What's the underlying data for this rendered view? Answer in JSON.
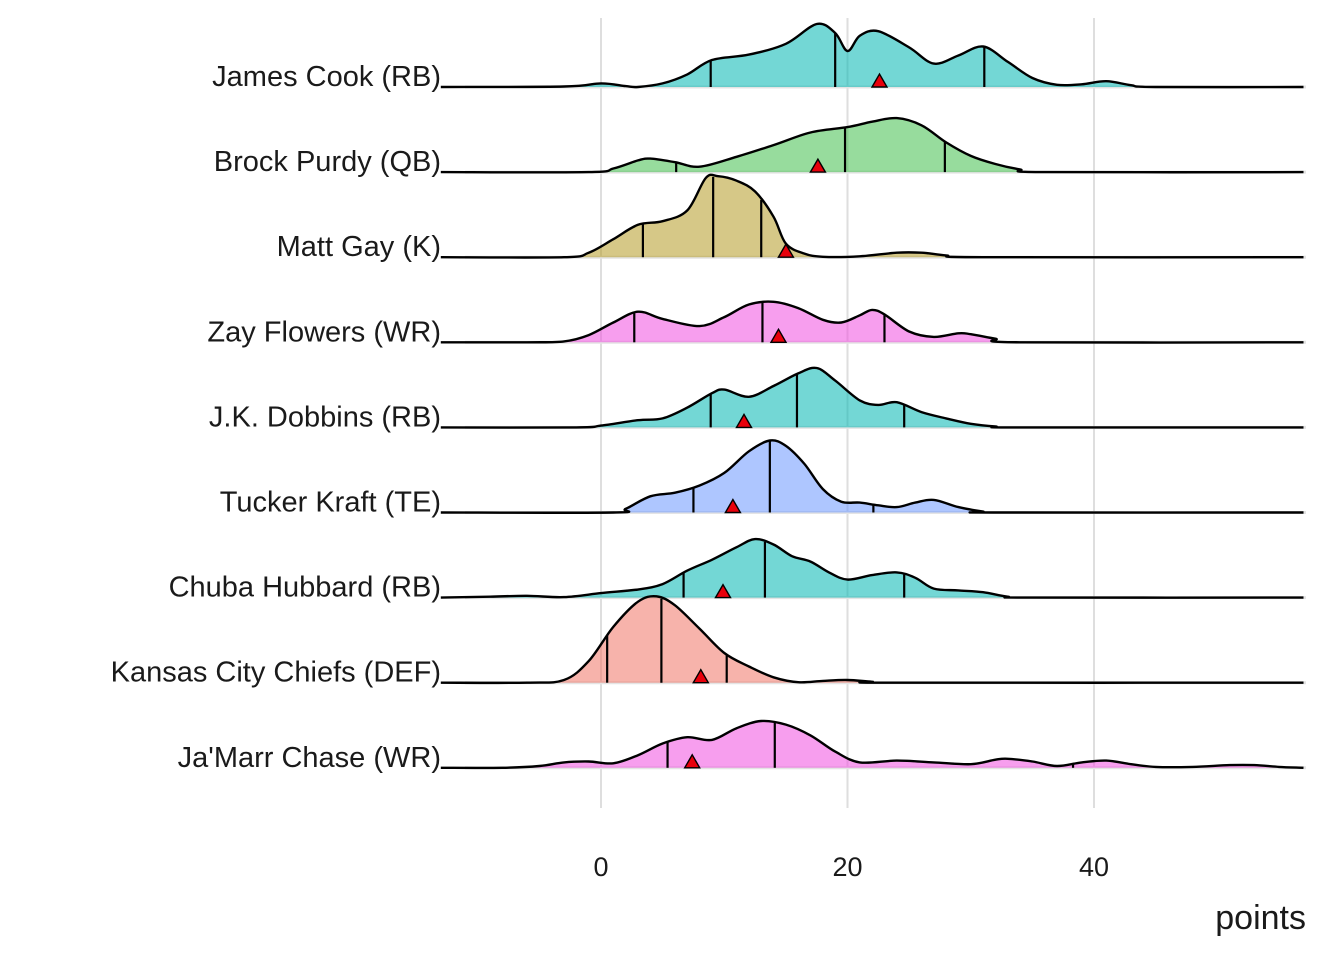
{
  "chart_data": {
    "type": "ridgeline",
    "title": "",
    "xlabel": "points",
    "ylabel": "",
    "xlim": [
      -13.5,
      57
    ],
    "x_ticks": [
      0,
      20,
      40
    ],
    "grid": "vertical",
    "marker_label": "red triangle",
    "series": [
      {
        "name": "James Cook (RB)",
        "color": "#00B6B2",
        "quantiles": [
          8.9,
          19.0,
          31.1
        ],
        "marker": 22.6,
        "range": [
          -13,
          57
        ],
        "density": [
          [
            -13,
            0
          ],
          [
            -3,
            0.005
          ],
          [
            0,
            0.04
          ],
          [
            2,
            0.01
          ],
          [
            3,
            0
          ],
          [
            5,
            0.04
          ],
          [
            7,
            0.14
          ],
          [
            9,
            0.3
          ],
          [
            12,
            0.36
          ],
          [
            15,
            0.48
          ],
          [
            17.5,
            0.7
          ],
          [
            19,
            0.6
          ],
          [
            20,
            0.4
          ],
          [
            21,
            0.57
          ],
          [
            22.5,
            0.62
          ],
          [
            25,
            0.44
          ],
          [
            27,
            0.26
          ],
          [
            29,
            0.35
          ],
          [
            31,
            0.45
          ],
          [
            33,
            0.28
          ],
          [
            35,
            0.1
          ],
          [
            37,
            0.025
          ],
          [
            39,
            0.03
          ],
          [
            41,
            0.065
          ],
          [
            43,
            0.02
          ],
          [
            45,
            0
          ],
          [
            57,
            0
          ]
        ]
      },
      {
        "name": "Brock Purdy (QB)",
        "color": "#41BF4C",
        "quantiles": [
          6.1,
          19.8,
          27.9
        ],
        "marker": 17.6,
        "range": [
          -13,
          57
        ],
        "density": [
          [
            -13,
            0
          ],
          [
            -1,
            0
          ],
          [
            1,
            0.04
          ],
          [
            3,
            0.13
          ],
          [
            4,
            0.15
          ],
          [
            6,
            0.11
          ],
          [
            8,
            0.06
          ],
          [
            11,
            0.17
          ],
          [
            14,
            0.3
          ],
          [
            17,
            0.44
          ],
          [
            20,
            0.5
          ],
          [
            22,
            0.56
          ],
          [
            24,
            0.6
          ],
          [
            26,
            0.52
          ],
          [
            28,
            0.33
          ],
          [
            30,
            0.18
          ],
          [
            32,
            0.09
          ],
          [
            34,
            0.03
          ],
          [
            36,
            0
          ],
          [
            57,
            0
          ]
        ]
      },
      {
        "name": "Matt Gay (K)",
        "color": "#B49A25",
        "quantiles": [
          3.4,
          9.1,
          13.0
        ],
        "marker": 15.0,
        "range": [
          -13,
          57
        ],
        "density": [
          [
            -13,
            0
          ],
          [
            -3,
            0
          ],
          [
            -1,
            0.05
          ],
          [
            1,
            0.2
          ],
          [
            3,
            0.36
          ],
          [
            5,
            0.4
          ],
          [
            7,
            0.52
          ],
          [
            8.5,
            0.88
          ],
          [
            9.5,
            0.9
          ],
          [
            11,
            0.85
          ],
          [
            12.5,
            0.73
          ],
          [
            14,
            0.45
          ],
          [
            15,
            0.15
          ],
          [
            16.5,
            0.04
          ],
          [
            18,
            0.005
          ],
          [
            21,
            0.01
          ],
          [
            24,
            0.05
          ],
          [
            26,
            0.05
          ],
          [
            28,
            0.02
          ],
          [
            31,
            0
          ],
          [
            57,
            0
          ]
        ]
      },
      {
        "name": "Zay Flowers (WR)",
        "color": "#F14EE0",
        "quantiles": [
          2.7,
          13.1,
          23.0
        ],
        "marker": 14.4,
        "range": [
          -13,
          57
        ],
        "density": [
          [
            -13,
            0
          ],
          [
            -6,
            0
          ],
          [
            -3,
            0.01
          ],
          [
            -1,
            0.08
          ],
          [
            1,
            0.22
          ],
          [
            3,
            0.34
          ],
          [
            5,
            0.26
          ],
          [
            8,
            0.18
          ],
          [
            10,
            0.28
          ],
          [
            12,
            0.42
          ],
          [
            14,
            0.45
          ],
          [
            16,
            0.38
          ],
          [
            18,
            0.25
          ],
          [
            19.5,
            0.22
          ],
          [
            21,
            0.3
          ],
          [
            22,
            0.36
          ],
          [
            23,
            0.31
          ],
          [
            25,
            0.12
          ],
          [
            27,
            0.06
          ],
          [
            29,
            0.1
          ],
          [
            30,
            0.09
          ],
          [
            32,
            0.04
          ],
          [
            34,
            0
          ],
          [
            57,
            0
          ]
        ]
      },
      {
        "name": "J.K. Dobbins (RB)",
        "color": "#00B6B2",
        "quantiles": [
          8.9,
          15.9,
          24.6
        ],
        "marker": 11.6,
        "range": [
          -13,
          57
        ],
        "density": [
          [
            -13,
            0
          ],
          [
            -2,
            0
          ],
          [
            0,
            0.02
          ],
          [
            3,
            0.08
          ],
          [
            5,
            0.1
          ],
          [
            7,
            0.22
          ],
          [
            9,
            0.38
          ],
          [
            10,
            0.42
          ],
          [
            12,
            0.34
          ],
          [
            14,
            0.46
          ],
          [
            16,
            0.6
          ],
          [
            17.5,
            0.66
          ],
          [
            19,
            0.52
          ],
          [
            21,
            0.3
          ],
          [
            22.5,
            0.25
          ],
          [
            24,
            0.28
          ],
          [
            26,
            0.17
          ],
          [
            28,
            0.1
          ],
          [
            30,
            0.04
          ],
          [
            32,
            0.01
          ],
          [
            34,
            0
          ],
          [
            57,
            0
          ]
        ]
      },
      {
        "name": "Tucker Kraft (TE)",
        "color": "#6B98FF",
        "quantiles": [
          7.5,
          13.7,
          22.1
        ],
        "marker": 10.7,
        "range": [
          -13,
          57
        ],
        "density": [
          [
            -13,
            0
          ],
          [
            1,
            0
          ],
          [
            2,
            0.04
          ],
          [
            4,
            0.18
          ],
          [
            6,
            0.22
          ],
          [
            8,
            0.3
          ],
          [
            10,
            0.44
          ],
          [
            12,
            0.68
          ],
          [
            13.7,
            0.8
          ],
          [
            15,
            0.74
          ],
          [
            16.5,
            0.54
          ],
          [
            18,
            0.26
          ],
          [
            19.5,
            0.12
          ],
          [
            21,
            0.11
          ],
          [
            22.5,
            0.08
          ],
          [
            24,
            0.06
          ],
          [
            25.5,
            0.11
          ],
          [
            27,
            0.14
          ],
          [
            29,
            0.06
          ],
          [
            31,
            0.01
          ],
          [
            32,
            0
          ],
          [
            57,
            0
          ]
        ]
      },
      {
        "name": "Chuba Hubbard (RB)",
        "color": "#00B6B2",
        "quantiles": [
          6.7,
          13.3,
          24.6
        ],
        "marker": 9.9,
        "range": [
          -13,
          57
        ],
        "density": [
          [
            -13,
            0
          ],
          [
            -9,
            0.01
          ],
          [
            -6,
            0.02
          ],
          [
            -3,
            0.005
          ],
          [
            0,
            0.05
          ],
          [
            3,
            0.09
          ],
          [
            5,
            0.15
          ],
          [
            7,
            0.3
          ],
          [
            9,
            0.42
          ],
          [
            11,
            0.56
          ],
          [
            12.5,
            0.65
          ],
          [
            14,
            0.59
          ],
          [
            15.5,
            0.46
          ],
          [
            17,
            0.4
          ],
          [
            18.5,
            0.28
          ],
          [
            20,
            0.2
          ],
          [
            22,
            0.25
          ],
          [
            24,
            0.28
          ],
          [
            25.5,
            0.22
          ],
          [
            27,
            0.1
          ],
          [
            29,
            0.08
          ],
          [
            31,
            0.06
          ],
          [
            33,
            0.01
          ],
          [
            35,
            0
          ],
          [
            57,
            0
          ]
        ]
      },
      {
        "name": "Kansas City Chiefs (DEF)",
        "color": "#F07466",
        "quantiles": [
          0.5,
          4.9,
          10.2
        ],
        "marker": 8.1,
        "range": [
          -13,
          57
        ],
        "density": [
          [
            -13,
            0
          ],
          [
            -6,
            0
          ],
          [
            -3,
            0.03
          ],
          [
            -1,
            0.24
          ],
          [
            1,
            0.62
          ],
          [
            3,
            0.9
          ],
          [
            4.5,
            0.96
          ],
          [
            6,
            0.86
          ],
          [
            8,
            0.6
          ],
          [
            10,
            0.33
          ],
          [
            12,
            0.18
          ],
          [
            14,
            0.06
          ],
          [
            16,
            0.005
          ],
          [
            18,
            0.02
          ],
          [
            20,
            0.03
          ],
          [
            22,
            0.01
          ],
          [
            24,
            0
          ],
          [
            57,
            0
          ]
        ]
      },
      {
        "name": "Ja'Marr Chase (WR)",
        "color": "#F14EE0",
        "quantiles": [
          5.4,
          14.1,
          38.3
        ],
        "marker": 7.4,
        "range": [
          -13,
          57
        ],
        "density": [
          [
            -13,
            0
          ],
          [
            -8,
            0
          ],
          [
            -5,
            0.02
          ],
          [
            -3,
            0.06
          ],
          [
            -1,
            0.07
          ],
          [
            1,
            0.05
          ],
          [
            3,
            0.14
          ],
          [
            5,
            0.27
          ],
          [
            7,
            0.34
          ],
          [
            9,
            0.31
          ],
          [
            11,
            0.44
          ],
          [
            13,
            0.52
          ],
          [
            15,
            0.48
          ],
          [
            17,
            0.36
          ],
          [
            19,
            0.18
          ],
          [
            21,
            0.06
          ],
          [
            24,
            0.08
          ],
          [
            27,
            0.06
          ],
          [
            30,
            0.04
          ],
          [
            32,
            0.09
          ],
          [
            33,
            0.1
          ],
          [
            35,
            0.07
          ],
          [
            37,
            0.02
          ],
          [
            39,
            0.06
          ],
          [
            41,
            0.08
          ],
          [
            43,
            0.04
          ],
          [
            45,
            0.01
          ],
          [
            48,
            0.01
          ],
          [
            51,
            0.03
          ],
          [
            53,
            0.03
          ],
          [
            55,
            0.01
          ],
          [
            57,
            0
          ]
        ]
      }
    ]
  }
}
